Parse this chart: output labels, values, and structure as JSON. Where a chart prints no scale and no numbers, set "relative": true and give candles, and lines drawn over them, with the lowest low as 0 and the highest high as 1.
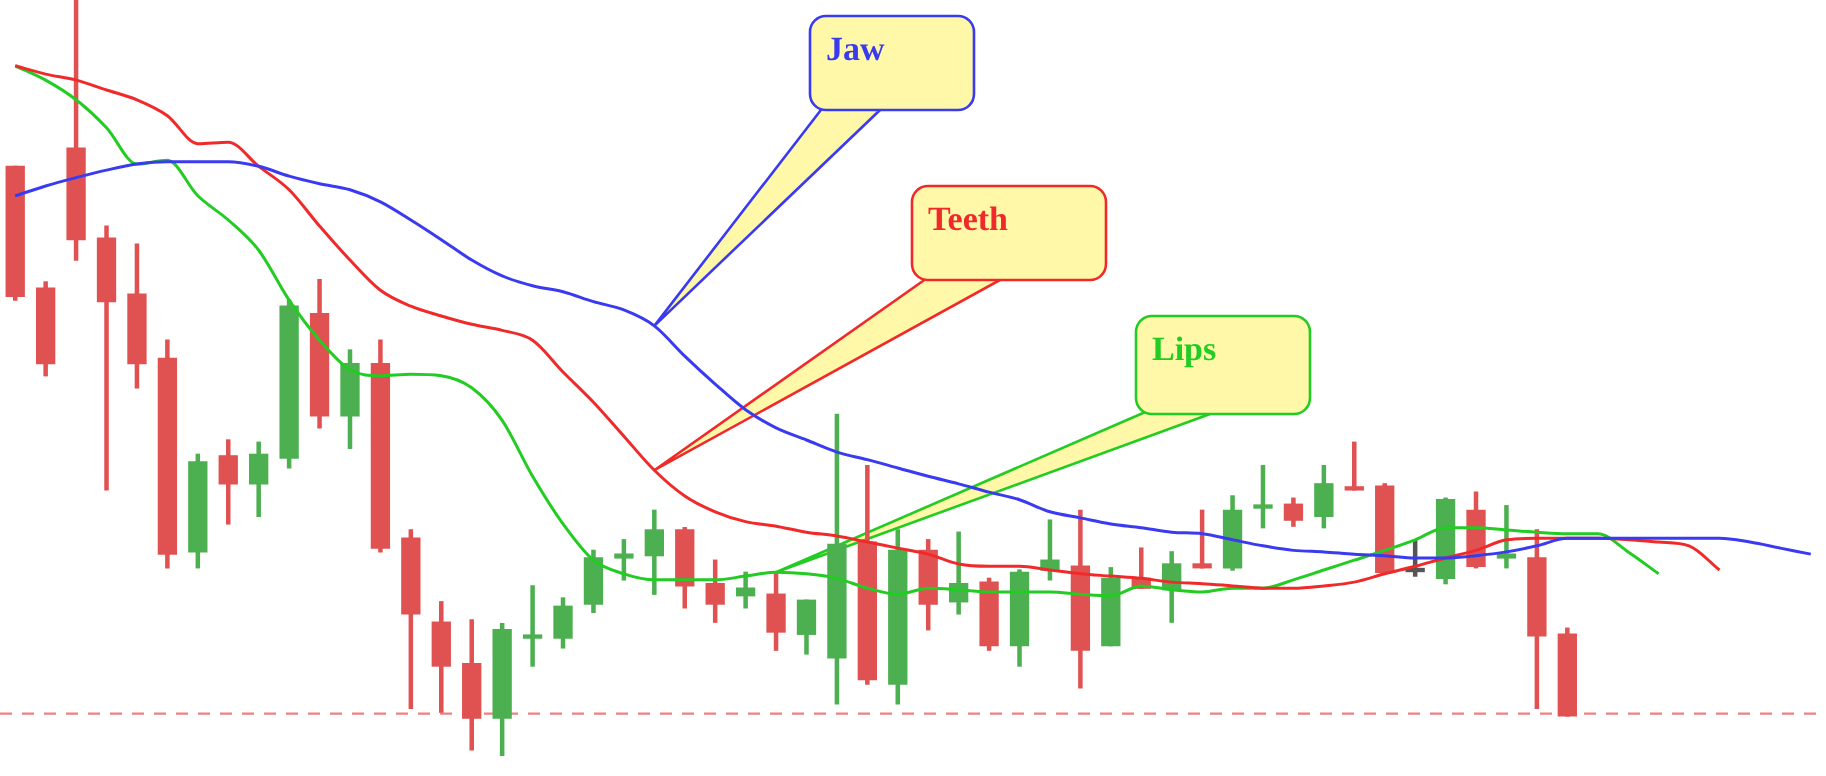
{
  "chart_data": {
    "type": "candlestick",
    "relative": true,
    "legend": false,
    "categories": [
      null,
      null,
      null,
      null,
      null,
      null,
      null,
      null,
      null,
      null,
      null,
      null,
      null,
      null,
      null,
      null,
      null,
      null,
      null,
      null,
      null,
      null,
      null,
      null,
      null,
      null,
      null,
      null,
      null,
      null,
      null,
      null,
      null,
      null,
      null,
      null,
      null,
      null,
      null,
      null,
      null,
      null,
      null,
      null,
      null,
      null,
      null,
      null,
      null,
      null,
      null,
      null,
      null,
      null,
      null,
      null,
      null,
      null,
      null,
      null
    ],
    "ohlc": [
      [
        0.78,
        0.78,
        0.603,
        0.608
      ],
      [
        0.619,
        0.627,
        0.503,
        0.519
      ],
      [
        0.804,
        1,
        0.656,
        0.683
      ],
      [
        0.685,
        0.701,
        0.352,
        0.601
      ],
      [
        0.611,
        0.677,
        0.487,
        0.519
      ],
      [
        0.526,
        0.55,
        0.249,
        0.267
      ],
      [
        0.27,
        0.399,
        0.249,
        0.389
      ],
      [
        0.397,
        0.418,
        0.307,
        0.36
      ],
      [
        0.36,
        0.415,
        0.317,
        0.399
      ],
      [
        0.394,
        0.603,
        0.381,
        0.595
      ],
      [
        0.585,
        0.63,
        0.434,
        0.45
      ],
      [
        0.45,
        0.537,
        0.407,
        0.519
      ],
      [
        0.519,
        0.55,
        0.27,
        0.275
      ],
      [
        0.288,
        0.299,
        0.063,
        0.188
      ],
      [
        0.177,
        0.204,
        0.058,
        0.119
      ],
      [
        0.122,
        0.18,
        0.008,
        0.05
      ],
      [
        0.05,
        0.175,
        0,
        0.167
      ],
      [
        0.156,
        0.225,
        0.119,
        0.159
      ],
      [
        0.156,
        0.209,
        0.143,
        0.198
      ],
      [
        0.201,
        0.272,
        0.19,
        0.262
      ],
      [
        0.262,
        0.286,
        0.233,
        0.267
      ],
      [
        0.265,
        0.325,
        0.214,
        0.299
      ],
      [
        0.299,
        0.302,
        0.196,
        0.225
      ],
      [
        0.228,
        0.259,
        0.177,
        0.201
      ],
      [
        0.212,
        0.243,
        0.196,
        0.222
      ],
      [
        0.214,
        0.241,
        0.14,
        0.164
      ],
      [
        0.161,
        0.206,
        0.135,
        0.206
      ],
      [
        0.13,
        0.452,
        0.069,
        0.28
      ],
      [
        0.283,
        0.384,
        0.095,
        0.101
      ],
      [
        0.095,
        0.299,
        0.069,
        0.272
      ],
      [
        0.272,
        0.286,
        0.167,
        0.201
      ],
      [
        0.204,
        0.296,
        0.188,
        0.228
      ],
      [
        0.23,
        0.235,
        0.14,
        0.146
      ],
      [
        0.146,
        0.246,
        0.119,
        0.243
      ],
      [
        0.246,
        0.312,
        0.233,
        0.259
      ],
      [
        0.251,
        0.325,
        0.09,
        0.14
      ],
      [
        0.146,
        0.249,
        0.146,
        0.235
      ],
      [
        0.235,
        0.275,
        0.222,
        0.222
      ],
      [
        0.22,
        0.27,
        0.177,
        0.254
      ],
      [
        0.254,
        0.325,
        0.249,
        0.249
      ],
      [
        0.249,
        0.344,
        0.246,
        0.325
      ],
      [
        0.328,
        0.384,
        0.302,
        0.331
      ],
      [
        0.333,
        0.341,
        0.304,
        0.312
      ],
      [
        0.317,
        0.384,
        0.302,
        0.36
      ],
      [
        0.354,
        0.415,
        0.352,
        0.352
      ],
      [
        0.357,
        0.36,
        0.243,
        0.243
      ],
      [
        0.244,
        0.286,
        0.238,
        0.248
      ],
      [
        0.235,
        0.341,
        0.228,
        0.339
      ],
      [
        0.325,
        0.349,
        0.249,
        0.251
      ],
      [
        0.262,
        0.331,
        0.249,
        0.267
      ],
      [
        0.262,
        0.299,
        0.063,
        0.159
      ],
      [
        0.161,
        0.169,
        0.053,
        0.053
      ],
      null,
      null,
      null,
      null,
      null,
      null,
      null,
      null
    ],
    "colors": [
      "#e05252",
      "#e05252",
      "#e05252",
      "#e05252",
      "#e05252",
      "#e05252",
      "#4caf50",
      "#e05252",
      "#4caf50",
      "#4caf50",
      "#e05252",
      "#4caf50",
      "#e05252",
      "#e05252",
      "#e05252",
      "#e05252",
      "#4caf50",
      "#4caf50",
      "#4caf50",
      "#4caf50",
      "#4caf50",
      "#4caf50",
      "#e05252",
      "#e05252",
      "#4caf50",
      "#e05252",
      "#4caf50",
      "#4caf50",
      "#e05252",
      "#4caf50",
      "#e05252",
      "#4caf50",
      "#e05252",
      "#4caf50",
      "#4caf50",
      "#e05252",
      "#4caf50",
      "#e05252",
      "#4caf50",
      "#e05252",
      "#4caf50",
      "#4caf50",
      "#e05252",
      "#4caf50",
      "#e05252",
      "#e05252",
      "#555555",
      "#4caf50",
      "#e05252",
      "#4caf50",
      "#e05252",
      "#e05252",
      null,
      null,
      null,
      null,
      null,
      null,
      null,
      null
    ],
    "series": [
      {
        "name": "Jaw",
        "type": "line",
        "color": "#3a3af0",
        "values": [
          0.741,
          0.754,
          0.765,
          0.775,
          0.783,
          0.786,
          0.786,
          0.786,
          0.78,
          0.767,
          0.757,
          0.749,
          0.733,
          0.709,
          0.683,
          0.656,
          0.635,
          0.622,
          0.614,
          0.601,
          0.59,
          0.569,
          0.529,
          0.492,
          0.458,
          0.434,
          0.418,
          0.402,
          0.392,
          0.381,
          0.37,
          0.36,
          0.349,
          0.339,
          0.323,
          0.315,
          0.307,
          0.302,
          0.296,
          0.294,
          0.286,
          0.278,
          0.272,
          0.27,
          0.267,
          0.265,
          0.262,
          0.262,
          0.265,
          0.27,
          0.278,
          0.288,
          0.288,
          0.288,
          0.288,
          0.288,
          0.288,
          0.283,
          0.275,
          0.267
        ]
      },
      {
        "name": "Teeth",
        "type": "line",
        "color": "#f02a2a",
        "values": [
          0.913,
          0.902,
          0.894,
          0.881,
          0.868,
          0.847,
          0.81,
          0.812,
          0.78,
          0.749,
          0.701,
          0.656,
          0.616,
          0.595,
          0.582,
          0.571,
          0.563,
          0.55,
          0.508,
          0.468,
          0.423,
          0.378,
          0.344,
          0.323,
          0.31,
          0.304,
          0.296,
          0.291,
          0.283,
          0.275,
          0.267,
          0.254,
          0.251,
          0.251,
          0.246,
          0.241,
          0.238,
          0.235,
          0.23,
          0.228,
          0.225,
          0.222,
          0.222,
          0.225,
          0.23,
          0.241,
          0.251,
          0.262,
          0.272,
          0.286,
          0.288,
          0.288,
          0.288,
          0.286,
          0.283,
          0.278,
          0.246,
          null,
          null,
          null
        ]
      },
      {
        "name": "Lips",
        "type": "line",
        "color": "#22cc22",
        "values": [
          0.913,
          0.894,
          0.868,
          0.831,
          0.783,
          0.788,
          0.741,
          0.709,
          0.669,
          0.603,
          0.55,
          0.511,
          0.503,
          0.505,
          0.503,
          0.487,
          0.444,
          0.37,
          0.307,
          0.259,
          0.241,
          0.233,
          0.233,
          0.233,
          0.238,
          0.243,
          0.241,
          0.235,
          0.222,
          0.214,
          0.222,
          0.22,
          0.217,
          0.217,
          0.217,
          0.214,
          0.212,
          0.225,
          0.22,
          0.217,
          0.222,
          0.222,
          0.233,
          0.246,
          0.259,
          0.272,
          0.286,
          0.302,
          0.302,
          0.299,
          0.296,
          0.294,
          0.294,
          0.27,
          0.241,
          null,
          null,
          null,
          null,
          null
        ]
      }
    ],
    "ref_lines": [
      {
        "axis": "y",
        "value": 0.056,
        "color": "#f08080",
        "line_style": "dashed"
      }
    ]
  }
}
